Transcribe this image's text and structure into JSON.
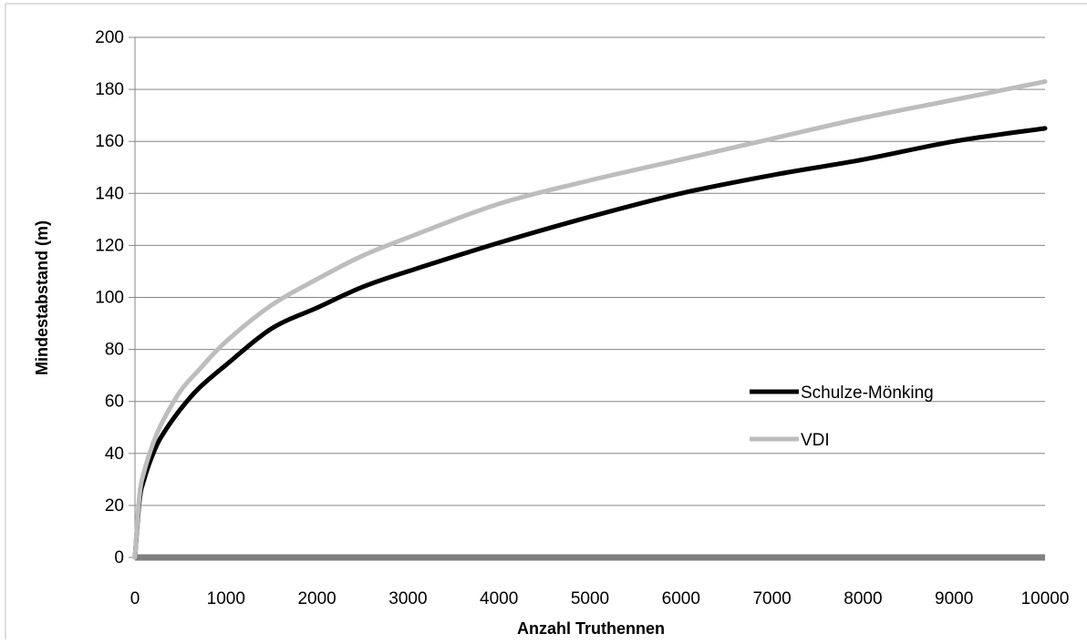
{
  "chart_data": {
    "type": "line",
    "title": "",
    "xlabel": "Anzahl Truthennen",
    "ylabel": "Mindestabstand (m)",
    "xlim": [
      0,
      10000
    ],
    "ylim": [
      0,
      200
    ],
    "x_ticks": [
      "0",
      "1000",
      "2000",
      "3000",
      "4000",
      "5000",
      "6000",
      "7000",
      "8000",
      "9000",
      "10000"
    ],
    "y_ticks": [
      "0",
      "20",
      "40",
      "60",
      "80",
      "100",
      "120",
      "140",
      "160",
      "180",
      "200"
    ],
    "grid": "horizontal",
    "legend_position": "right-middle",
    "x": [
      0,
      50,
      100,
      200,
      300,
      500,
      700,
      1000,
      1500,
      2000,
      2500,
      3000,
      4000,
      5000,
      6000,
      7000,
      8000,
      9000,
      10000
    ],
    "series": [
      {
        "name": "Schulze-Mönking",
        "color": "#000000",
        "values": [
          0,
          22,
          30,
          40,
          47,
          57,
          65,
          74,
          88,
          96,
          104,
          110,
          121,
          131,
          140,
          147,
          153,
          160,
          165
        ]
      },
      {
        "name": "VDI",
        "color": "#bdbdbd",
        "values": [
          0,
          24,
          33,
          44,
          52,
          64,
          72,
          83,
          97,
          107,
          116,
          123,
          136,
          145,
          153,
          161,
          169,
          176,
          183
        ]
      }
    ],
    "zero_line_color": "#7f7f7f",
    "grid_color": "#868686"
  }
}
